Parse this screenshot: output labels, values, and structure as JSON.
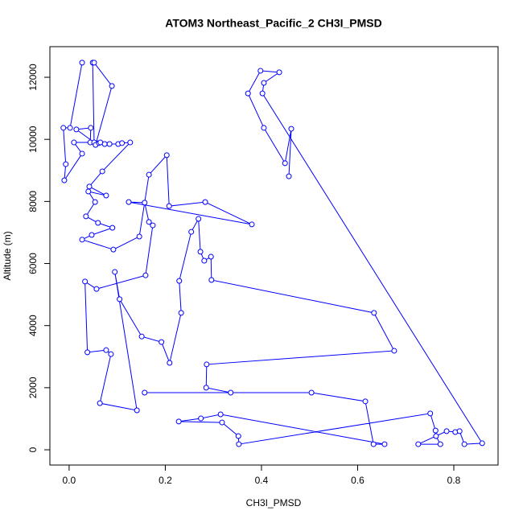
{
  "chart_data": {
    "type": "line",
    "title": "ATOM3 Northeast_Pacific_2 CH3I_PMSD",
    "xlabel": "CH3I_PMSD",
    "ylabel": "Altitude (m)",
    "color": "#0000ff",
    "markers": true,
    "x": [
      0.027,
      0.002,
      -0.012,
      -0.007,
      -0.01,
      0.027,
      0.01,
      0.044,
      0.045,
      0.015,
      0.052,
      0.049,
      0.052,
      0.089,
      0.055,
      0.062,
      0.065,
      0.074,
      0.084,
      0.102,
      0.11,
      0.127,
      0.069,
      0.042,
      0.077,
      0.04,
      0.054,
      0.035,
      0.06,
      0.09,
      0.047,
      0.027,
      0.092,
      0.146,
      0.166,
      0.203,
      0.208,
      0.283,
      0.38,
      0.124,
      0.157,
      0.166,
      0.174,
      0.159,
      0.057,
      0.033,
      0.038,
      0.077,
      0.087,
      0.064,
      0.141,
      0.095,
      0.105,
      0.151,
      0.192,
      0.209,
      0.233,
      0.229,
      0.254,
      0.269,
      0.273,
      0.281,
      0.295,
      0.296,
      0.634,
      0.676,
      0.286,
      0.285,
      0.336,
      0.157,
      0.504,
      0.616,
      0.633,
      0.656,
      0.315,
      0.274,
      0.228,
      0.318,
      0.352,
      0.353,
      0.751,
      0.762,
      0.763,
      0.772,
      0.726,
      0.785,
      0.803,
      0.812,
      0.822,
      0.859,
      0.402,
      0.405,
      0.437,
      0.398,
      0.372,
      0.405,
      0.449,
      0.462,
      0.457
    ],
    "values": [
      12470,
      10370,
      10370,
      9200,
      8680,
      9540,
      9900,
      9900,
      10370,
      10320,
      9900,
      12470,
      12470,
      11720,
      9820,
      9880,
      9900,
      9850,
      9850,
      9850,
      9880,
      9900,
      8970,
      8480,
      8190,
      8320,
      7980,
      7520,
      7310,
      7150,
      6920,
      6770,
      6450,
      6870,
      8860,
      9490,
      7850,
      7980,
      7260,
      7980,
      7960,
      7340,
      7230,
      5620,
      5180,
      5420,
      3140,
      3210,
      3080,
      1500,
      1270,
      5730,
      4850,
      3650,
      3470,
      2800,
      4410,
      5440,
      7020,
      7440,
      6380,
      6090,
      6220,
      5470,
      4410,
      3190,
      2750,
      2000,
      1840,
      1840,
      1840,
      1560,
      180,
      180,
      1140,
      1010,
      910,
      880,
      440,
      180,
      1170,
      620,
      440,
      180,
      180,
      600,
      570,
      600,
      180,
      210,
      11480,
      11820,
      12160,
      12210,
      11480,
      10370,
      9230,
      10340,
      8810
    ],
    "xlim": [
      -0.04,
      0.892
    ],
    "ylim": [
      -492,
      12986
    ],
    "xticks": [
      {
        "value": 0,
        "label": "0.0"
      },
      0.2,
      0.4,
      0.6,
      0.8
    ],
    "yticks": [
      0,
      2000,
      4000,
      6000,
      8000,
      10000,
      12000
    ]
  }
}
